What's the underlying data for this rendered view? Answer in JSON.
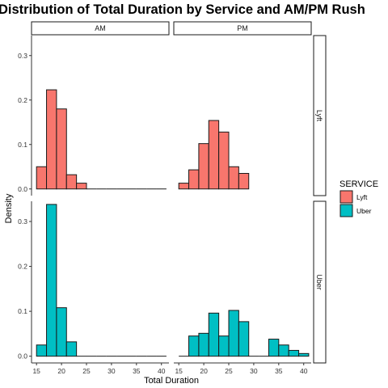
{
  "chart_data": {
    "type": "bar",
    "title": "Distribution of Total Duration by Service and AM/PM Rush",
    "xlabel": "Total Duration",
    "ylabel": "Density",
    "xlim": [
      14,
      41.5
    ],
    "ylim": [
      -0.015,
      0.345
    ],
    "x_ticks": [
      "15",
      "20",
      "25",
      "30",
      "35",
      "40"
    ],
    "y_ticks": [
      "0.0",
      "0.1",
      "0.2",
      "0.3"
    ],
    "facet_columns": [
      "AM",
      "PM"
    ],
    "facet_rows": [
      "Lyft",
      "Uber"
    ],
    "legend": {
      "title": "SERVICE",
      "position": "right",
      "entries": [
        {
          "label": "Lyft",
          "color": "#F8766D"
        },
        {
          "label": "Uber",
          "color": "#00BFC4"
        }
      ]
    },
    "bin_width": 2,
    "panels": [
      {
        "column": "AM",
        "row": "Lyft",
        "color": "#F8766D",
        "bin_starts": [
          15,
          17,
          19,
          21,
          23,
          25,
          27,
          29,
          31,
          33,
          35,
          37,
          39
        ],
        "values": [
          0.05,
          0.223,
          0.18,
          0.032,
          0.013,
          0,
          0,
          0,
          0,
          0,
          0,
          0,
          0
        ]
      },
      {
        "column": "PM",
        "row": "Lyft",
        "color": "#F8766D",
        "bin_starts": [
          15,
          17,
          19,
          21,
          23,
          25,
          27
        ],
        "values": [
          0.013,
          0.043,
          0.102,
          0.154,
          0.128,
          0.05,
          0.035
        ]
      },
      {
        "column": "AM",
        "row": "Uber",
        "color": "#00BFC4",
        "bin_starts": [
          15,
          17,
          19,
          21,
          23,
          25,
          27,
          29,
          31,
          33,
          35,
          37,
          39
        ],
        "values": [
          0.025,
          0.338,
          0.108,
          0.032,
          0,
          0,
          0,
          0,
          0,
          0,
          0,
          0,
          0
        ]
      },
      {
        "column": "PM",
        "row": "Uber",
        "color": "#00BFC4",
        "bin_starts": [
          15,
          17,
          19,
          21,
          23,
          25,
          27,
          29,
          31,
          33,
          35,
          37,
          39
        ],
        "values": [
          0,
          0.045,
          0.051,
          0.096,
          0.045,
          0.102,
          0.077,
          0,
          0,
          0.038,
          0.025,
          0.013,
          0.006
        ]
      }
    ]
  }
}
